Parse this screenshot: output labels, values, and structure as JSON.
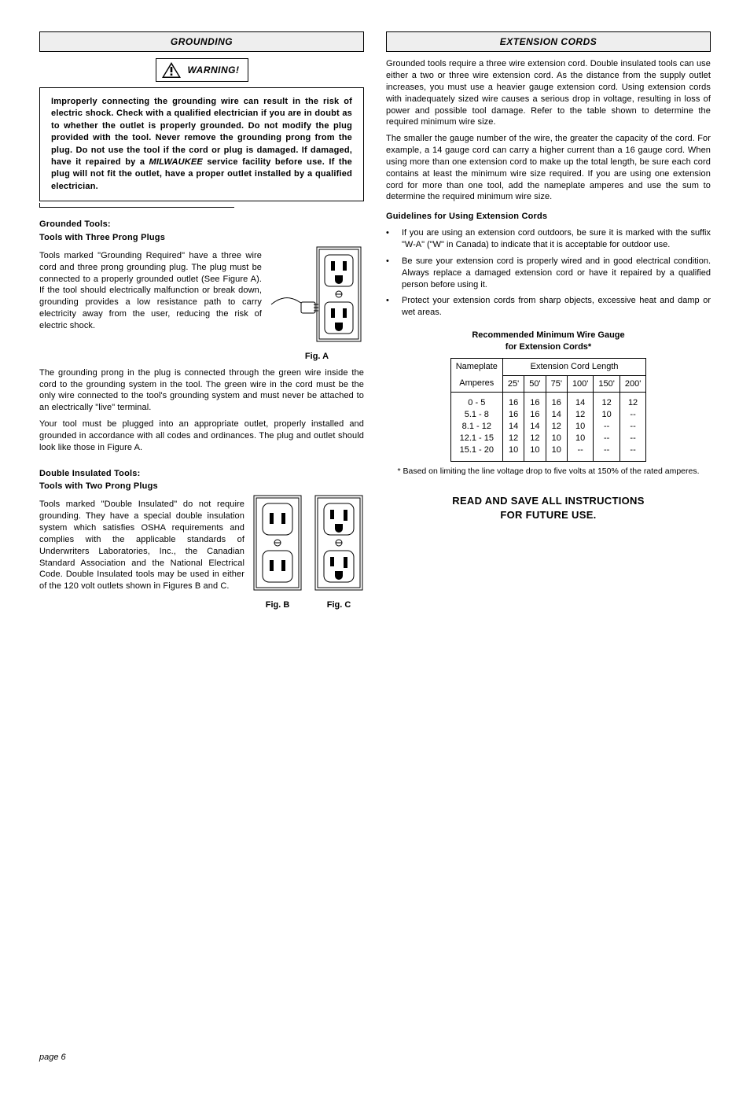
{
  "left": {
    "header": "GROUNDING",
    "warning_label": "WARNING!",
    "warning_text_pre": "Improperly connecting the grounding wire can result in the risk of electric shock. Check with a qualified electrician if you are in doubt as to whether the outlet is properly grounded. Do not modify the plug provided with the tool. Never remove the grounding prong from the plug. Do not use the tool if the cord or plug is damaged. If damaged, have it repaired by a ",
    "warning_brand": "MILWAUKEE",
    "warning_text_post": " service facility before use. If the plug will not fit the outlet, have a proper outlet installed by a qualified electrician.",
    "grounded_head1": "Grounded Tools:",
    "grounded_head2": "Tools with Three Prong Plugs",
    "grounded_p1": "Tools marked \"Grounding Required\" have a three wire cord and three prong grounding plug. The plug must be connected to a properly grounded outlet (See Figure A). If the tool should electrically malfunction or break down, grounding provides a low resistance path to carry electricity away from the user, reducing the risk of electric shock.",
    "figA_label": "Fig. A",
    "grounded_p2": "The grounding prong in the plug is connected through the green wire inside the cord to the grounding system in the tool. The green wire in the cord must be the only wire connected to the tool's grounding system and must never be attached to an electrically \"live\" terminal.",
    "grounded_p3": "Your tool must be plugged into an appropriate outlet, properly installed and grounded in accordance with all codes and ordinances. The plug and outlet should look like those in Figure A.",
    "double_head1": "Double Insulated Tools:",
    "double_head2": "Tools with Two Prong Plugs",
    "double_p1": "Tools marked \"Double Insulated\" do not require grounding. They have a special double insulation system which satisfies OSHA requirements and complies with the applicable standards of Underwriters Laboratories, Inc., the Canadian Standard Association and the National Electrical Code. Double Insulated tools may be used in either of the 120 volt outlets shown in Figures B and C.",
    "figB_label": "Fig. B",
    "figC_label": "Fig. C"
  },
  "right": {
    "header": "EXTENSION CORDS",
    "p1": "Grounded tools require a three wire extension cord. Double insulated tools can use either a two or three wire extension cord. As the distance from the supply outlet increases, you must use a heavier gauge extension cord. Using extension cords with inadequately sized wire causes a serious drop in voltage, resulting in loss of power and possible tool damage. Refer to the table shown to determine the required minimum wire size.",
    "p2": "The smaller the gauge number of the wire, the greater the capacity of the cord. For example, a 14 gauge cord can carry a higher current than a 16 gauge cord. When using more than one extension cord to make up the total length, be sure each cord contains at least the minimum wire size required. If you are using one extension cord for more than one tool, add the nameplate amperes and use the sum to determine the required minimum wire size.",
    "guidelines_head": "Guidelines for Using Extension Cords",
    "bullets": [
      "If you are using an extension cord outdoors, be sure it is marked with the suffix \"W-A\" (\"W\" in Canada) to indicate that it is acceptable for outdoor use.",
      "Be sure your extension cord is properly wired and in good electrical condition. Always replace a damaged extension cord or have it repaired by a qualified person before using it.",
      "Protect your extension cords from sharp objects, excessive heat and damp or wet areas."
    ],
    "table_title1": "Recommended Minimum Wire Gauge",
    "table_title2": "for Extension Cords*",
    "table": {
      "row_header1": "Nameplate",
      "row_header2": "Amperes",
      "col_header": "Extension Cord Length",
      "lengths": [
        "25'",
        "50'",
        "75'",
        "100'",
        "150'",
        "200'"
      ],
      "rows": [
        {
          "amps": "0 - 5",
          "vals": [
            "16",
            "16",
            "16",
            "14",
            "12",
            "12"
          ]
        },
        {
          "amps": "5.1 - 8",
          "vals": [
            "16",
            "16",
            "14",
            "12",
            "10",
            "--"
          ]
        },
        {
          "amps": "8.1 - 12",
          "vals": [
            "14",
            "14",
            "12",
            "10",
            "--",
            "--"
          ]
        },
        {
          "amps": "12.1 - 15",
          "vals": [
            "12",
            "12",
            "10",
            "10",
            "--",
            "--"
          ]
        },
        {
          "amps": "15.1 - 20",
          "vals": [
            "10",
            "10",
            "10",
            "--",
            "--",
            "--"
          ]
        }
      ]
    },
    "footnote": "* Based on limiting the line voltage drop to five volts at 150% of the rated amperes.",
    "save1": "READ AND SAVE ALL INSTRUCTIONS",
    "save2": "FOR FUTURE USE."
  },
  "page_label": "page 6"
}
